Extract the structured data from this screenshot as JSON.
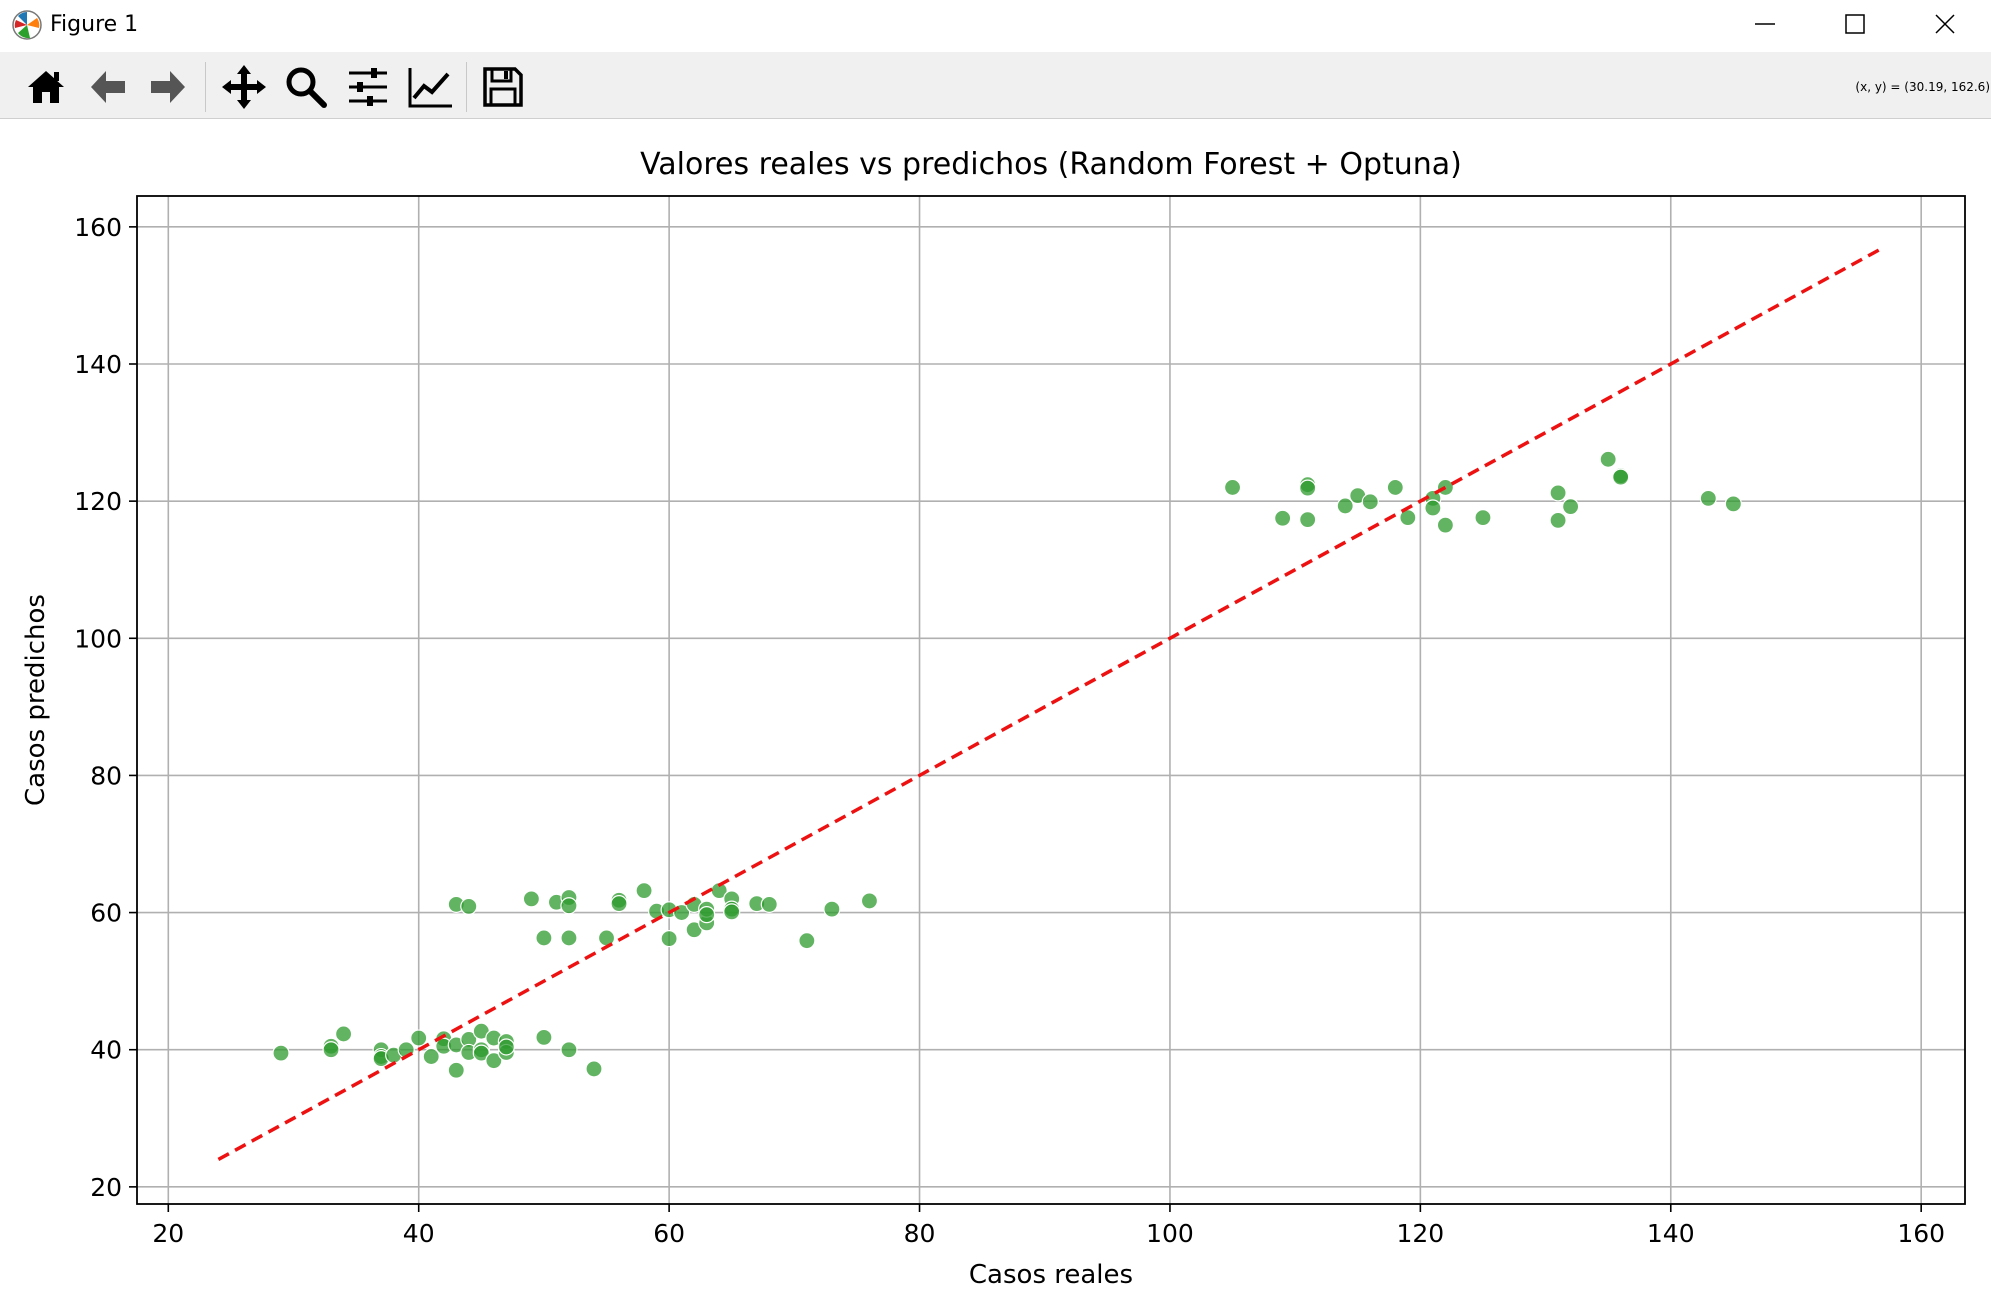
{
  "window": {
    "title": "Figure 1",
    "coords_readout": "(x, y) = (30.19, 162.6)"
  },
  "toolbar": {
    "tools": [
      "home-icon",
      "back-arrow-icon",
      "forward-arrow-icon",
      "pan-icon",
      "zoom-icon",
      "configure-subplots-icon",
      "edit-axis-icon",
      "save-icon"
    ]
  },
  "chart_data": {
    "type": "scatter",
    "title": "Valores reales vs predichos (Random Forest + Optuna)",
    "xlabel": "Casos reales",
    "ylabel": "Casos predichos",
    "xlim": [
      17.5,
      163.5
    ],
    "ylim": [
      17.5,
      164.5
    ],
    "xticks": [
      20,
      40,
      60,
      80,
      100,
      120,
      140,
      160
    ],
    "yticks": [
      20,
      40,
      60,
      80,
      100,
      120,
      140,
      160
    ],
    "grid": true,
    "point_color": "#2e9b2e",
    "line_color": "#ee1111",
    "reference_line": {
      "x": [
        24,
        157
      ],
      "y": [
        24,
        157
      ]
    },
    "points": [
      [
        29,
        39.5
      ],
      [
        33,
        40.5
      ],
      [
        33,
        40
      ],
      [
        34,
        42.3
      ],
      [
        37,
        40
      ],
      [
        37,
        39
      ],
      [
        37,
        38.7
      ],
      [
        38,
        39.2
      ],
      [
        39,
        40
      ],
      [
        40,
        41.7
      ],
      [
        41,
        39
      ],
      [
        42,
        41.6
      ],
      [
        42,
        40.5
      ],
      [
        43,
        37
      ],
      [
        43,
        40.7
      ],
      [
        44,
        41.5
      ],
      [
        44,
        39.6
      ],
      [
        45,
        42.7
      ],
      [
        45,
        40
      ],
      [
        45,
        39.5
      ],
      [
        46,
        41.7
      ],
      [
        46,
        38.4
      ],
      [
        47,
        41.2
      ],
      [
        47,
        39.6
      ],
      [
        47,
        40.4
      ],
      [
        50,
        41.8
      ],
      [
        52,
        40
      ],
      [
        54,
        37.2
      ],
      [
        43,
        61.2
      ],
      [
        44,
        60.9
      ],
      [
        49,
        62
      ],
      [
        50,
        56.3
      ],
      [
        51,
        61.5
      ],
      [
        52,
        62.2
      ],
      [
        52,
        61
      ],
      [
        52,
        56.3
      ],
      [
        55,
        56.3
      ],
      [
        56,
        61.8
      ],
      [
        56,
        61.3
      ],
      [
        58,
        63.2
      ],
      [
        59,
        60.2
      ],
      [
        60,
        60.4
      ],
      [
        60,
        56.2
      ],
      [
        61,
        60
      ],
      [
        62,
        57.5
      ],
      [
        62,
        61.2
      ],
      [
        63,
        58.5
      ],
      [
        63,
        60.5
      ],
      [
        63,
        59.7
      ],
      [
        64,
        63.2
      ],
      [
        65,
        62
      ],
      [
        65,
        60.5
      ],
      [
        65,
        60.1
      ],
      [
        67,
        61.3
      ],
      [
        68,
        61.2
      ],
      [
        71,
        55.9
      ],
      [
        73,
        60.5
      ],
      [
        76,
        61.7
      ],
      [
        105,
        122
      ],
      [
        109,
        117.5
      ],
      [
        111,
        122.4
      ],
      [
        111,
        121.9
      ],
      [
        111,
        117.3
      ],
      [
        114,
        119.3
      ],
      [
        115,
        120.8
      ],
      [
        116,
        119.9
      ],
      [
        118,
        122
      ],
      [
        119,
        117.6
      ],
      [
        121,
        120.4
      ],
      [
        121,
        119
      ],
      [
        122,
        122
      ],
      [
        122,
        116.5
      ],
      [
        125,
        117.6
      ],
      [
        131,
        121.2
      ],
      [
        131,
        117.2
      ],
      [
        132,
        119.2
      ],
      [
        135,
        126.1
      ],
      [
        136,
        123.7
      ],
      [
        136,
        123.5
      ],
      [
        143,
        120.4
      ],
      [
        145,
        119.6
      ]
    ]
  }
}
